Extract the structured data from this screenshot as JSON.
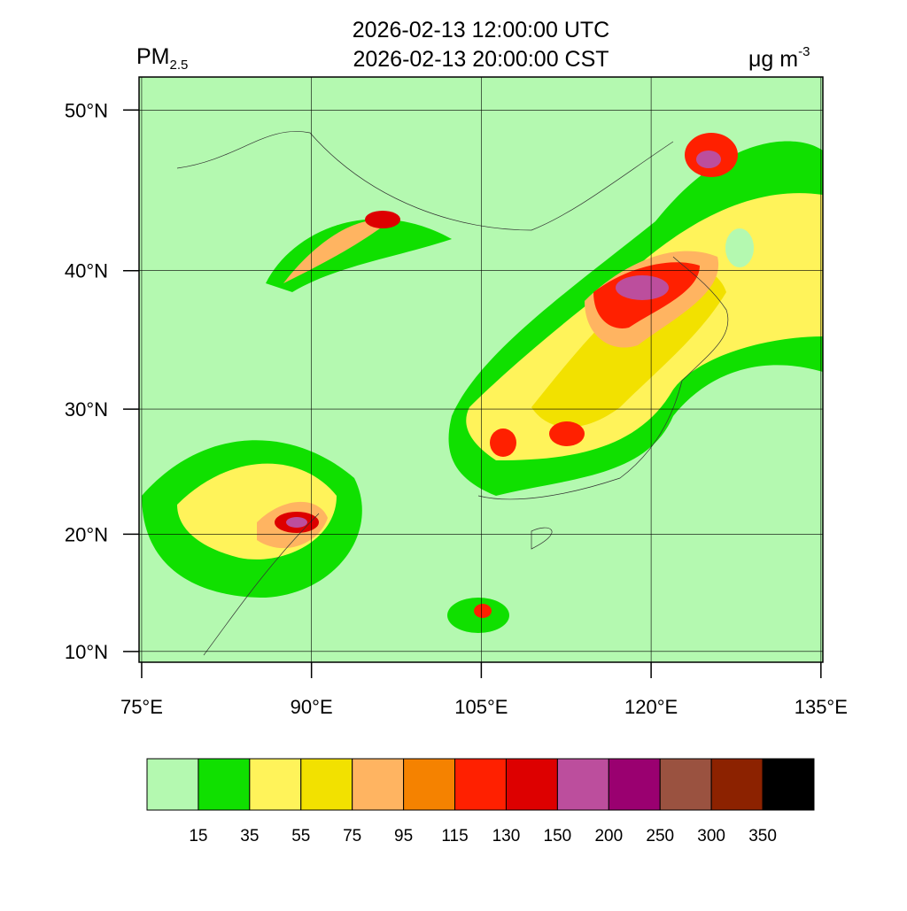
{
  "header": {
    "title_utc": "2026-02-13 12:00:00 UTC",
    "title_cst": "2026-02-13 20:00:00 CST",
    "variable": "PM",
    "variable_sub": "2.5",
    "units": "μg m",
    "units_sup": "-3"
  },
  "map": {
    "projection": "mercator",
    "lonlim": [
      74.77,
      135.17
    ],
    "latlim": [
      9.06,
      51.84
    ],
    "lat_ticks": [
      {
        "value": 10,
        "label": "10°N"
      },
      {
        "value": 20,
        "label": "20°N"
      },
      {
        "value": 30,
        "label": "30°N"
      },
      {
        "value": 40,
        "label": "40°N"
      },
      {
        "value": 50,
        "label": "50°N"
      }
    ],
    "lon_ticks": [
      {
        "value": 75,
        "label": "75°E"
      },
      {
        "value": 90,
        "label": "90°E"
      },
      {
        "value": 105,
        "label": "105°E"
      },
      {
        "value": 120,
        "label": "120°E"
      },
      {
        "value": 135,
        "label": "135°E"
      }
    ],
    "background": "#b4f9b0"
  },
  "colorbar": {
    "levels": [
      15,
      35,
      55,
      75,
      95,
      115,
      130,
      150,
      200,
      250,
      300,
      350
    ],
    "colors": [
      "#b4f9b0",
      "#10e000",
      "#fff35a",
      "#f2e100",
      "#ffb461",
      "#f58200",
      "#ff2000",
      "#dd0000",
      "#bc4e9d",
      "#9a0070",
      "#9a5240",
      "#8c2200",
      "#000000"
    ]
  }
}
